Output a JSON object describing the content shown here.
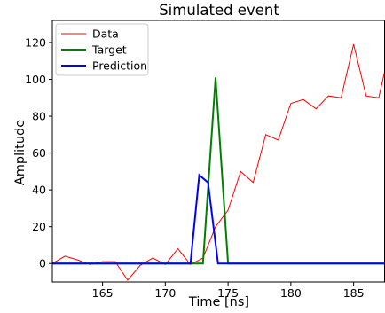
{
  "chart_data": {
    "type": "line",
    "title": "Simulated event",
    "xlabel": "Time [ns]",
    "ylabel": "Amplitude",
    "xlim": [
      161,
      187.5
    ],
    "ylim": [
      -10,
      132
    ],
    "xticks": [
      165,
      170,
      175,
      180,
      185
    ],
    "yticks": [
      0,
      20,
      40,
      60,
      80,
      100,
      120
    ],
    "grid": false,
    "legend_position": "top-left",
    "series": [
      {
        "name": "Data",
        "color": "#ff0000",
        "line_width": 1,
        "x": [
          161,
          162,
          163,
          164,
          165,
          166,
          167,
          168,
          169,
          170,
          171,
          172,
          173,
          174,
          175,
          176,
          177,
          178,
          179,
          180,
          181,
          182,
          183,
          184,
          185,
          186,
          187,
          187.5
        ],
        "y": [
          0,
          4,
          2,
          -0.5,
          1,
          1,
          -9,
          -1,
          3,
          -0.5,
          8,
          -0.5,
          3,
          20,
          29,
          50,
          44,
          70,
          67,
          87,
          89,
          84,
          91,
          90,
          119,
          91,
          90,
          105
        ]
      },
      {
        "name": "Target",
        "color": "#008000",
        "line_width": 2,
        "x": [
          161,
          172,
          173,
          174,
          175,
          187.5
        ],
        "y": [
          0,
          0,
          0,
          101,
          0,
          0
        ]
      },
      {
        "name": "Prediction",
        "color": "#0000ff",
        "line_width": 2,
        "x": [
          161,
          172,
          172.7,
          173.4,
          174.2,
          187.5
        ],
        "y": [
          0,
          0,
          48,
          44,
          0,
          0
        ]
      }
    ]
  }
}
